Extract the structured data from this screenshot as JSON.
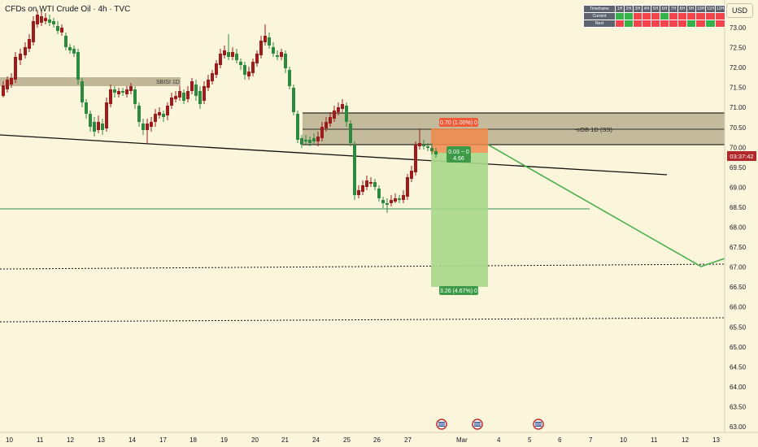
{
  "header": {
    "title": "CFDs on WTI Crude Oil · 4h · TVC",
    "currency": "USD"
  },
  "timeframe_table": {
    "header_label": "Timeframe",
    "columns": [
      "1H",
      "2H",
      "3H",
      "4H",
      "5H",
      "6H",
      "7H",
      "8H",
      "9H",
      "10H",
      "11H",
      "12H"
    ],
    "rows": [
      {
        "label": "Current",
        "cells": [
          "green",
          "green",
          "red",
          "red",
          "red",
          "green",
          "red",
          "red",
          "red",
          "red",
          "red",
          "red"
        ]
      },
      {
        "label": "Next",
        "cells": [
          "red",
          "green",
          "red",
          "red",
          "red",
          "red",
          "red",
          "red",
          "green",
          "red",
          "green",
          "red"
        ]
      }
    ]
  },
  "price_axis": {
    "ticks": [
      "73.00",
      "72.50",
      "72.00",
      "71.50",
      "71.00",
      "70.50",
      "70.00",
      "69.50",
      "69.00",
      "68.50",
      "68.00",
      "67.50",
      "67.00",
      "66.50",
      "66.00",
      "65.50",
      "65.00",
      "64.50",
      "64.00",
      "63.50",
      "63.00"
    ],
    "countdown": "03:37:42"
  },
  "time_axis": {
    "ticks": [
      "10",
      "11",
      "12",
      "13",
      "14",
      "17",
      "18",
      "19",
      "20",
      "21",
      "24",
      "25",
      "26",
      "27",
      "Mar",
      "4",
      "5",
      "6",
      "7",
      "10",
      "11",
      "12",
      "13"
    ]
  },
  "annotations": {
    "zone_sbisi": "SBISI 1D",
    "zone_cob": "-cOB 1D (SS)",
    "stop_label": "0.70 (1.00%) 0",
    "entry_label_1": "0.03 ~ 0",
    "entry_label_2": "4.66",
    "target_label": "3.26 (4.67%) 0"
  },
  "colors": {
    "background": "#fbf5dc",
    "bull": "#2b8a3e",
    "bear": "#9e1b1b",
    "stop_zone": "#f08a4b",
    "target_zone": "#a9d88a",
    "label_red": "#f05a37",
    "label_green": "#3d9a47",
    "current_price": "#b0282b"
  }
}
